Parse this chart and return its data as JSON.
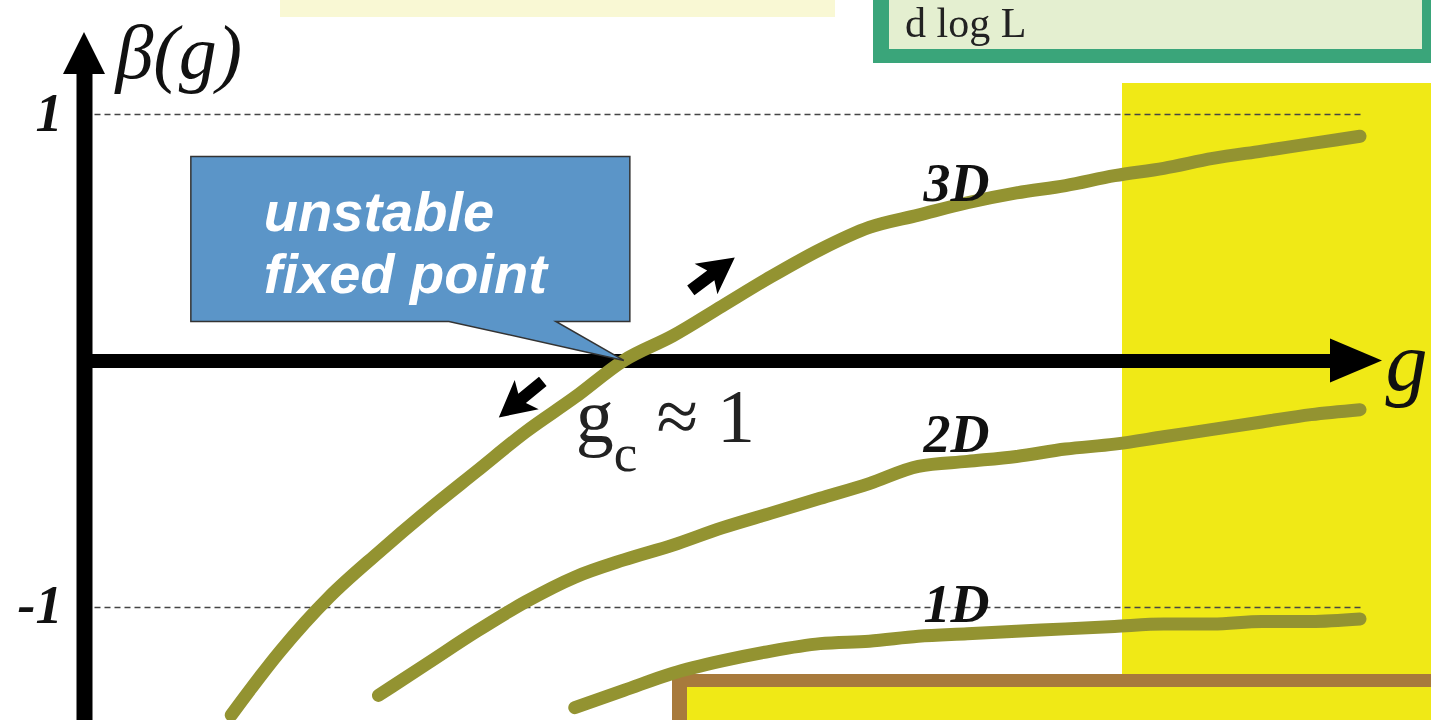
{
  "chart_data": {
    "type": "line",
    "xlabel": "g",
    "ylabel": "β(g)",
    "categories": [
      null,
      null,
      null,
      null,
      null,
      null,
      null,
      null,
      null,
      null,
      null,
      null,
      null,
      null,
      null,
      null,
      null,
      null,
      null,
      null,
      null,
      null,
      null,
      null,
      null,
      null,
      null
    ],
    "series": [
      {
        "name": "3D",
        "color": "#939331",
        "values": [
          null,
          null,
          null,
          -1.44,
          -1.18,
          -0.96,
          -0.78,
          -0.61,
          -0.45,
          -0.29,
          -0.15,
          0,
          0.1,
          0.22,
          0.34,
          0.45,
          0.54,
          0.59,
          0.64,
          0.68,
          0.71,
          0.75,
          0.78,
          0.82,
          0.85,
          0.88,
          0.91
        ]
      },
      {
        "name": "2D",
        "color": "#939331",
        "values": [
          null,
          null,
          null,
          null,
          null,
          null,
          -1.36,
          -1.23,
          -1.1,
          -0.98,
          -0.88,
          -0.81,
          -0.75,
          -0.68,
          -0.62,
          -0.56,
          -0.5,
          -0.43,
          -0.41,
          -0.39,
          -0.36,
          -0.34,
          -0.31,
          -0.28,
          -0.25,
          -0.22,
          -0.2
        ]
      },
      {
        "name": "1D",
        "color": "#939331",
        "values": [
          null,
          null,
          null,
          null,
          null,
          null,
          null,
          null,
          null,
          null,
          -1.41,
          -1.34,
          -1.27,
          -1.22,
          -1.18,
          -1.15,
          -1.14,
          -1.12,
          -1.11,
          -1.1,
          -1.09,
          -1.08,
          -1.07,
          -1.07,
          -1.06,
          -1.06,
          -1.05
        ]
      }
    ],
    "ylim": [
      -1.46,
      1.24
    ],
    "yticks": [
      -1,
      1
    ],
    "grid": "y",
    "tick_labels": "y",
    "annotations": [
      "unstable fixed point",
      "g$_{c}$ ≈ 1",
      "d log L"
    ]
  }
}
